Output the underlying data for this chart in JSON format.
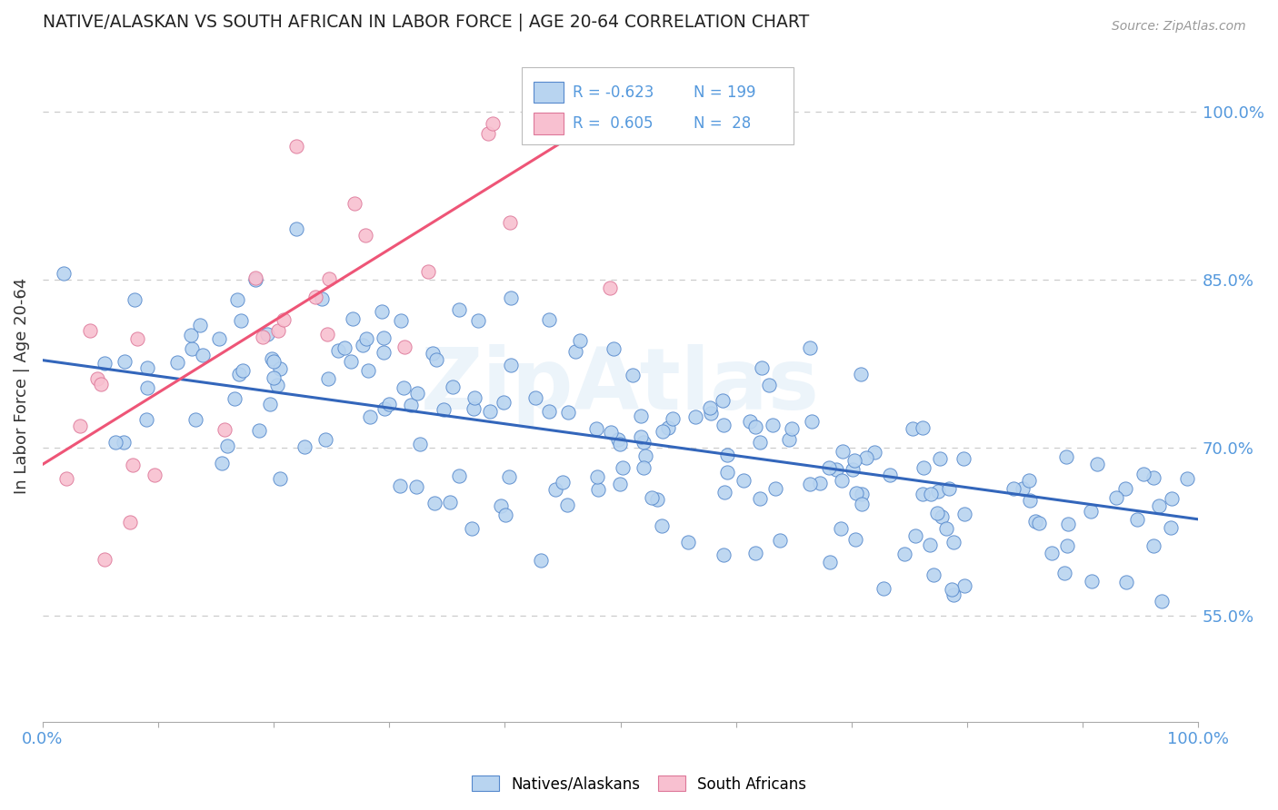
{
  "title": "NATIVE/ALASKAN VS SOUTH AFRICAN IN LABOR FORCE | AGE 20-64 CORRELATION CHART",
  "source": "Source: ZipAtlas.com",
  "ylabel": "In Labor Force | Age 20-64",
  "xlim": [
    0.0,
    1.0
  ],
  "ylim": [
    0.455,
    1.055
  ],
  "x_ticks": [
    0.0,
    0.1,
    0.2,
    0.3,
    0.4,
    0.5,
    0.6,
    0.7,
    0.8,
    0.9,
    1.0
  ],
  "y_tick_vals_right": [
    0.55,
    0.7,
    0.85,
    1.0
  ],
  "y_tick_labels_right": [
    "55.0%",
    "70.0%",
    "85.0%",
    "100.0%"
  ],
  "blue_R": -0.623,
  "blue_N": 199,
  "pink_R": 0.605,
  "pink_N": 28,
  "blue_color": "#b8d4f0",
  "blue_edge": "#5588cc",
  "pink_color": "#f8c0d0",
  "pink_edge": "#dd7799",
  "blue_line_color": "#3366bb",
  "pink_line_color": "#ee5577",
  "grid_color": "#cccccc",
  "title_color": "#222222",
  "axis_label_color": "#333333",
  "tick_label_color": "#5599dd",
  "watermark": "ZipAtlas",
  "blue_seed": 12345,
  "pink_seed": 9876,
  "blue_line_x0": 0.0,
  "blue_line_x1": 1.0,
  "blue_line_y0": 0.778,
  "blue_line_y1": 0.636,
  "pink_line_x0": 0.0,
  "pink_line_x1": 0.5,
  "pink_line_y0": 0.685,
  "pink_line_y1": 1.005
}
